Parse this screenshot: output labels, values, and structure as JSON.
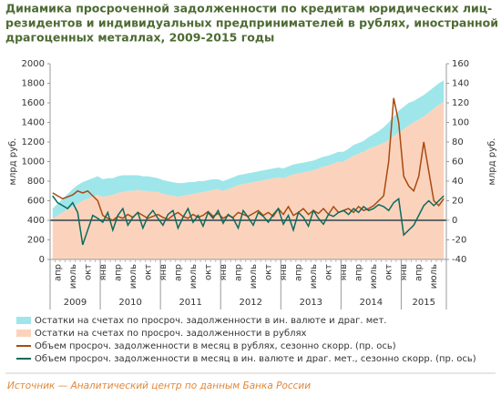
{
  "chart_data": {
    "type": "area-line",
    "title": [
      "Динамика просроченной задолженности по кредитам юридических лиц-",
      "резидентов и индивидуальных предпринимателей в рублях, иностранной валюте и",
      "драгоценных металлах, 2009-2015 годы"
    ],
    "ylabel": "млрд руб.",
    "y2label": "млрд руб.",
    "categories": [
      null,
      "апр",
      null,
      null,
      "июль",
      null,
      null,
      "окт",
      null,
      null,
      "янв",
      null,
      null,
      "апр",
      null,
      null,
      "июль",
      null,
      null,
      "окт",
      null,
      null,
      "янв",
      null,
      null,
      "апр",
      null,
      null,
      "июль",
      null,
      null,
      "окт",
      null,
      null,
      "янв",
      null,
      null,
      "апр",
      null,
      null,
      "июль",
      null,
      null,
      "окт",
      null,
      null,
      "янв",
      null,
      null,
      "апр",
      null,
      null,
      "июль",
      null,
      null,
      "окт",
      null,
      null,
      "янв",
      null,
      null,
      "апр",
      null,
      null,
      "июль",
      null,
      null,
      "окт",
      null,
      null,
      "янв",
      null,
      null,
      "апр",
      null,
      null,
      "июль",
      null,
      null
    ],
    "year_labels": [
      "2009",
      "2010",
      "2011",
      "2012",
      "2013",
      "2014",
      "2015"
    ],
    "ylim": [
      0,
      2000
    ],
    "yticks": [
      0,
      200,
      400,
      600,
      800,
      1000,
      1200,
      1400,
      1600,
      1800,
      2000
    ],
    "y2lim": [
      -40,
      160
    ],
    "y2ticks": [
      -40,
      -20,
      0,
      20,
      40,
      60,
      80,
      100,
      120,
      140,
      160
    ],
    "series": [
      {
        "name": "Остатки на счетах по просроч. задолженности в рублях",
        "kind": "area",
        "color": "#fbd3bc",
        "values": [
          420,
          450,
          480,
          510,
          540,
          570,
          600,
          620,
          640,
          660,
          640,
          650,
          660,
          680,
          690,
          700,
          700,
          710,
          700,
          700,
          690,
          690,
          670,
          660,
          650,
          640,
          650,
          660,
          670,
          680,
          690,
          700,
          710,
          720,
          700,
          720,
          740,
          760,
          770,
          780,
          790,
          800,
          810,
          820,
          830,
          840,
          830,
          850,
          870,
          880,
          890,
          900,
          910,
          930,
          950,
          960,
          980,
          1000,
          1000,
          1030,
          1060,
          1080,
          1100,
          1130,
          1150,
          1170,
          1190,
          1220,
          1260,
          1300,
          1330,
          1370,
          1400,
          1430,
          1460,
          1500,
          1540,
          1580,
          1610
        ]
      },
      {
        "name": "Остатки на счетах по просроч. задолженности в ин. валюте и драг. мет.",
        "kind": "area",
        "color": "#9ee6ea",
        "values": [
          100,
          120,
          140,
          160,
          180,
          190,
          190,
          190,
          190,
          190,
          180,
          180,
          170,
          170,
          170,
          160,
          160,
          150,
          150,
          150,
          150,
          140,
          140,
          140,
          140,
          140,
          130,
          130,
          120,
          120,
          110,
          110,
          110,
          100,
          100,
          100,
          100,
          100,
          100,
          100,
          100,
          100,
          100,
          100,
          100,
          100,
          100,
          100,
          100,
          100,
          100,
          100,
          100,
          100,
          100,
          100,
          100,
          100,
          100,
          100,
          110,
          110,
          110,
          120,
          130,
          140,
          160,
          180,
          200,
          220,
          230,
          230,
          220,
          220,
          220,
          220,
          220,
          220,
          220
        ]
      },
      {
        "name": "Объем просроч. задолженности в месяц в рублях, сезонно скорр. (пр. ось)",
        "kind": "line",
        "axis": "y2",
        "color": "#a84a12",
        "values": [
          28,
          25,
          22,
          24,
          26,
          30,
          28,
          30,
          25,
          20,
          5,
          2,
          0,
          4,
          2,
          6,
          3,
          8,
          5,
          2,
          4,
          6,
          3,
          1,
          5,
          8,
          4,
          2,
          6,
          3,
          5,
          9,
          4,
          7,
          2,
          5,
          3,
          8,
          6,
          4,
          7,
          10,
          5,
          8,
          4,
          12,
          6,
          14,
          5,
          8,
          12,
          6,
          10,
          7,
          12,
          6,
          14,
          8,
          10,
          12,
          8,
          14,
          10,
          12,
          15,
          20,
          25,
          60,
          125,
          100,
          45,
          35,
          30,
          45,
          80,
          50,
          20,
          15,
          22
        ]
      },
      {
        "name": "Объем просроч. задолженности в месяц в ин. валюте и драг. мет., сезонно скорр. (пр. ось)",
        "kind": "line",
        "axis": "y2",
        "color": "#0b6b5e",
        "values": [
          25,
          18,
          15,
          12,
          18,
          8,
          -25,
          -10,
          5,
          2,
          -2,
          8,
          -10,
          5,
          12,
          -5,
          3,
          8,
          -8,
          4,
          10,
          2,
          -5,
          6,
          10,
          -8,
          3,
          12,
          -2,
          5,
          -6,
          8,
          2,
          10,
          -3,
          6,
          2,
          -8,
          10,
          3,
          -5,
          8,
          4,
          -2,
          6,
          12,
          -4,
          5,
          -10,
          8,
          3,
          -6,
          10,
          2,
          -4,
          6,
          4,
          8,
          10,
          6,
          12,
          8,
          14,
          10,
          12,
          16,
          14,
          10,
          18,
          22,
          -15,
          -10,
          -5,
          5,
          15,
          20,
          15,
          20,
          25
        ]
      }
    ],
    "legend_order": [
      1,
      0,
      2,
      3
    ],
    "source": "Источник — Аналитический центр по данным Банка России"
  }
}
